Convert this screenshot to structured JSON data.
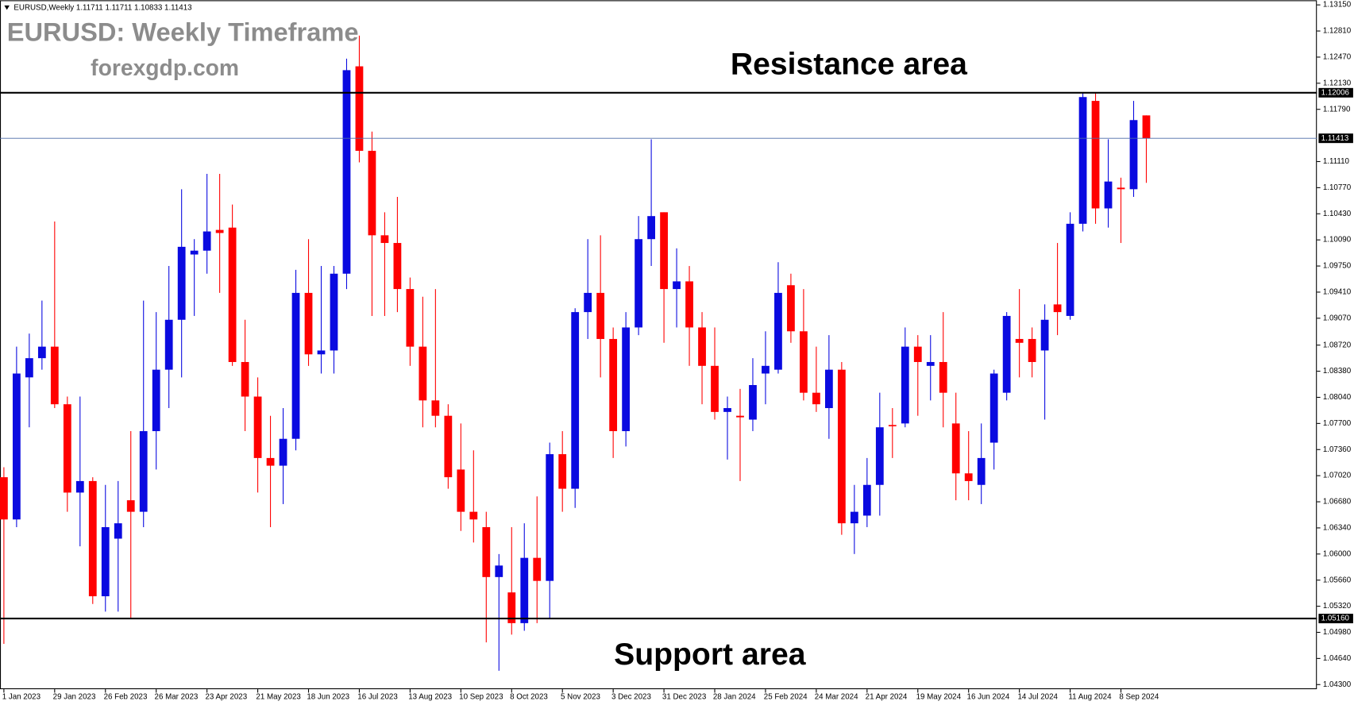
{
  "chart_data": {
    "type": "candlestick",
    "info": "EURUSD,Weekly  1.11711 1.11711 1.10833 1.11413",
    "title": "EURUSD: Weekly Timeframe",
    "subtitle": "forexgdp.com",
    "annotations": [
      "Resistance area",
      "Support area"
    ],
    "up_color": "#0a0ae0",
    "down_color": "#ff0000",
    "categories": [
      "1 Jan 2023",
      null,
      null,
      null,
      "29 Jan 2023",
      null,
      null,
      null,
      "26 Feb 2023",
      null,
      null,
      null,
      "26 Mar 2023",
      null,
      null,
      null,
      "23 Apr 2023",
      null,
      null,
      null,
      "21 May 2023",
      null,
      null,
      null,
      "18 Jun 2023",
      null,
      null,
      null,
      "16 Jul 2023",
      null,
      null,
      null,
      "13 Aug 2023",
      null,
      null,
      null,
      "10 Sep 2023",
      null,
      null,
      null,
      "8 Oct 2023",
      null,
      null,
      null,
      "5 Nov 2023",
      null,
      null,
      null,
      "3 Dec 2023",
      null,
      null,
      null,
      "31 Dec 2023",
      null,
      null,
      null,
      "28 Jan 2024",
      null,
      null,
      null,
      "25 Feb 2024",
      null,
      null,
      null,
      "24 Mar 2024",
      null,
      null,
      null,
      "21 Apr 2024",
      null,
      null,
      null,
      "19 May 2024",
      null,
      null,
      null,
      "16 Jun 2024",
      null,
      null,
      null,
      "14 Jul 2024",
      null,
      null,
      null,
      "11 Aug 2024",
      null,
      null,
      null,
      "8 Sep 2024",
      null,
      null
    ],
    "open": [
      1.07,
      1.0645,
      1.083,
      1.0855,
      1.087,
      1.0795,
      1.068,
      1.0695,
      1.0545,
      1.062,
      1.067,
      1.0655,
      1.076,
      1.084,
      1.0905,
      1.099,
      1.0995,
      1.1022,
      1.1025,
      1.085,
      1.0805,
      1.0725,
      1.0715,
      1.075,
      1.094,
      1.086,
      1.0865,
      1.0965,
      1.1235,
      1.1125,
      1.1015,
      1.1005,
      1.0945,
      1.087,
      1.08,
      1.078,
      1.071,
      1.0655,
      1.0635,
      1.057,
      1.055,
      1.051,
      1.0595,
      1.0565,
      1.073,
      1.0685,
      1.0915,
      1.094,
      1.088,
      1.076,
      1.0895,
      1.101,
      1.1045,
      1.0945,
      1.0955,
      1.0895,
      1.0845,
      1.0785,
      1.078,
      1.0775,
      1.0835,
      1.084,
      1.095,
      1.089,
      1.081,
      1.079,
      1.084,
      1.064,
      1.065,
      1.069,
      1.0768,
      1.077,
      1.087,
      1.0845,
      1.085,
      1.077,
      1.0705,
      1.069,
      1.0745,
      1.081,
      1.088,
      1.088,
      1.0865,
      1.0925,
      1.091,
      1.103,
      1.119,
      1.105,
      1.1077,
      1.1075,
      1.11711
    ],
    "high": [
      1.0713,
      1.087,
      1.0887,
      1.093,
      1.1033,
      1.0805,
      1.0805,
      1.07,
      1.069,
      1.0695,
      1.076,
      1.093,
      1.0915,
      1.0975,
      1.1075,
      1.101,
      1.1095,
      1.1095,
      1.1055,
      1.0905,
      1.083,
      1.078,
      1.079,
      1.097,
      1.101,
      1.0975,
      1.0975,
      1.1245,
      1.1275,
      1.115,
      1.1045,
      1.1065,
      1.096,
      1.0935,
      1.0945,
      1.0795,
      1.077,
      1.0735,
      1.0655,
      1.06,
      1.0635,
      1.064,
      1.0675,
      1.0745,
      1.076,
      1.092,
      1.101,
      1.1015,
      1.0895,
      1.0915,
      1.104,
      1.114,
      1.1045,
      1.0998,
      1.0975,
      1.0915,
      1.0895,
      1.0805,
      1.0815,
      1.0855,
      1.089,
      1.098,
      1.0965,
      1.0945,
      1.087,
      1.0885,
      1.085,
      1.069,
      1.0725,
      1.081,
      1.079,
      1.0895,
      1.0885,
      1.0885,
      1.0915,
      1.081,
      1.076,
      1.077,
      1.084,
      1.0915,
      1.0945,
      1.0895,
      1.0925,
      1.1005,
      1.1045,
      1.12,
      1.12,
      1.114,
      1.109,
      1.119,
      1.11711
    ],
    "low": [
      1.0483,
      1.0635,
      1.0765,
      1.084,
      1.079,
      1.0655,
      1.061,
      1.0535,
      1.0525,
      1.0525,
      1.0516,
      1.0635,
      1.071,
      1.079,
      1.083,
      1.091,
      1.0965,
      1.094,
      1.0845,
      1.076,
      1.068,
      1.0635,
      1.0665,
      1.0735,
      1.0845,
      1.0835,
      1.0835,
      1.0945,
      1.111,
      1.091,
      1.091,
      1.0915,
      1.0845,
      1.0765,
      1.0765,
      1.0685,
      1.063,
      1.0615,
      1.0485,
      1.0448,
      1.0495,
      1.05,
      1.051,
      1.0516,
      1.0655,
      1.066,
      1.088,
      1.083,
      1.0725,
      1.074,
      1.0885,
      1.0975,
      1.0875,
      1.0895,
      1.0845,
      1.0795,
      1.0775,
      1.0723,
      1.0695,
      1.076,
      1.0795,
      1.0835,
      1.0875,
      1.08,
      1.0785,
      1.075,
      1.0625,
      1.06,
      1.0635,
      1.065,
      1.0725,
      1.0765,
      1.078,
      1.08,
      1.0765,
      1.067,
      1.067,
      1.0665,
      1.071,
      1.08,
      1.083,
      1.083,
      1.0775,
      1.0885,
      1.0905,
      1.102,
      1.103,
      1.1025,
      1.1005,
      1.1065,
      1.10833
    ],
    "close": [
      1.0645,
      1.0835,
      1.0855,
      1.087,
      1.0795,
      1.068,
      1.0695,
      1.0545,
      1.0635,
      1.064,
      1.0655,
      1.076,
      1.084,
      1.0905,
      1.1,
      1.0995,
      1.102,
      1.1018,
      1.085,
      1.0805,
      1.0725,
      1.0715,
      1.075,
      1.094,
      1.086,
      1.0865,
      1.0965,
      1.123,
      1.1125,
      1.1015,
      1.1005,
      1.0945,
      1.087,
      1.08,
      1.078,
      1.07,
      1.0655,
      1.0645,
      1.057,
      1.0585,
      1.051,
      1.0595,
      1.0565,
      1.073,
      1.0685,
      1.0915,
      1.094,
      1.088,
      1.076,
      1.0895,
      1.101,
      1.104,
      1.0945,
      1.0955,
      1.0895,
      1.0845,
      1.0785,
      1.079,
      1.0778,
      1.082,
      1.0845,
      1.094,
      1.089,
      1.081,
      1.0795,
      1.084,
      1.064,
      1.0655,
      1.069,
      1.0765,
      1.0767,
      1.087,
      1.085,
      1.085,
      1.081,
      1.0705,
      1.0695,
      1.0725,
      1.0835,
      1.091,
      1.0875,
      1.085,
      1.0905,
      1.0915,
      1.103,
      1.1195,
      1.105,
      1.1085,
      1.1075,
      1.1165,
      1.11413
    ],
    "ylim": [
      1.0424,
      1.1321
    ],
    "yticks": [
      {
        "value": 1.1315,
        "label": "1.13150"
      },
      {
        "value": 1.1281,
        "label": "1.12810"
      },
      {
        "value": 1.1247,
        "label": "1.12470"
      },
      {
        "value": 1.1213,
        "label": "1.12130"
      },
      {
        "value": 1.1179,
        "label": "1.11790"
      },
      {
        "value": 1.1111,
        "label": "1.11110"
      },
      {
        "value": 1.1077,
        "label": "1.10770"
      },
      {
        "value": 1.1043,
        "label": "1.10430"
      },
      {
        "value": 1.1009,
        "label": "1.10090"
      },
      {
        "value": 1.0975,
        "label": "1.09750"
      },
      {
        "value": 1.0941,
        "label": "1.09410"
      },
      {
        "value": 1.0907,
        "label": "1.09070"
      },
      {
        "value": 1.0872,
        "label": "1.08720"
      },
      {
        "value": 1.0838,
        "label": "1.08380"
      },
      {
        "value": 1.0804,
        "label": "1.08040"
      },
      {
        "value": 1.077,
        "label": "1.07700"
      },
      {
        "value": 1.0736,
        "label": "1.07360"
      },
      {
        "value": 1.0702,
        "label": "1.07020"
      },
      {
        "value": 1.0668,
        "label": "1.06680"
      },
      {
        "value": 1.0634,
        "label": "1.06340"
      },
      {
        "value": 1.06,
        "label": "1.06000"
      },
      {
        "value": 1.0566,
        "label": "1.05660"
      },
      {
        "value": 1.0532,
        "label": "1.05320"
      },
      {
        "value": 1.0498,
        "label": "1.04980"
      },
      {
        "value": 1.0464,
        "label": "1.04640"
      },
      {
        "value": 1.043,
        "label": "1.04300"
      }
    ],
    "levels": [
      {
        "value": 1.12006,
        "label": "1.12006",
        "color": "#000000",
        "width": 2
      },
      {
        "value": 1.11413,
        "label": "1.11413",
        "color": "#4a6aa8",
        "width": 0.7
      },
      {
        "value": 1.0516,
        "label": "1.05160",
        "color": "#000000",
        "width": 2
      }
    ]
  }
}
